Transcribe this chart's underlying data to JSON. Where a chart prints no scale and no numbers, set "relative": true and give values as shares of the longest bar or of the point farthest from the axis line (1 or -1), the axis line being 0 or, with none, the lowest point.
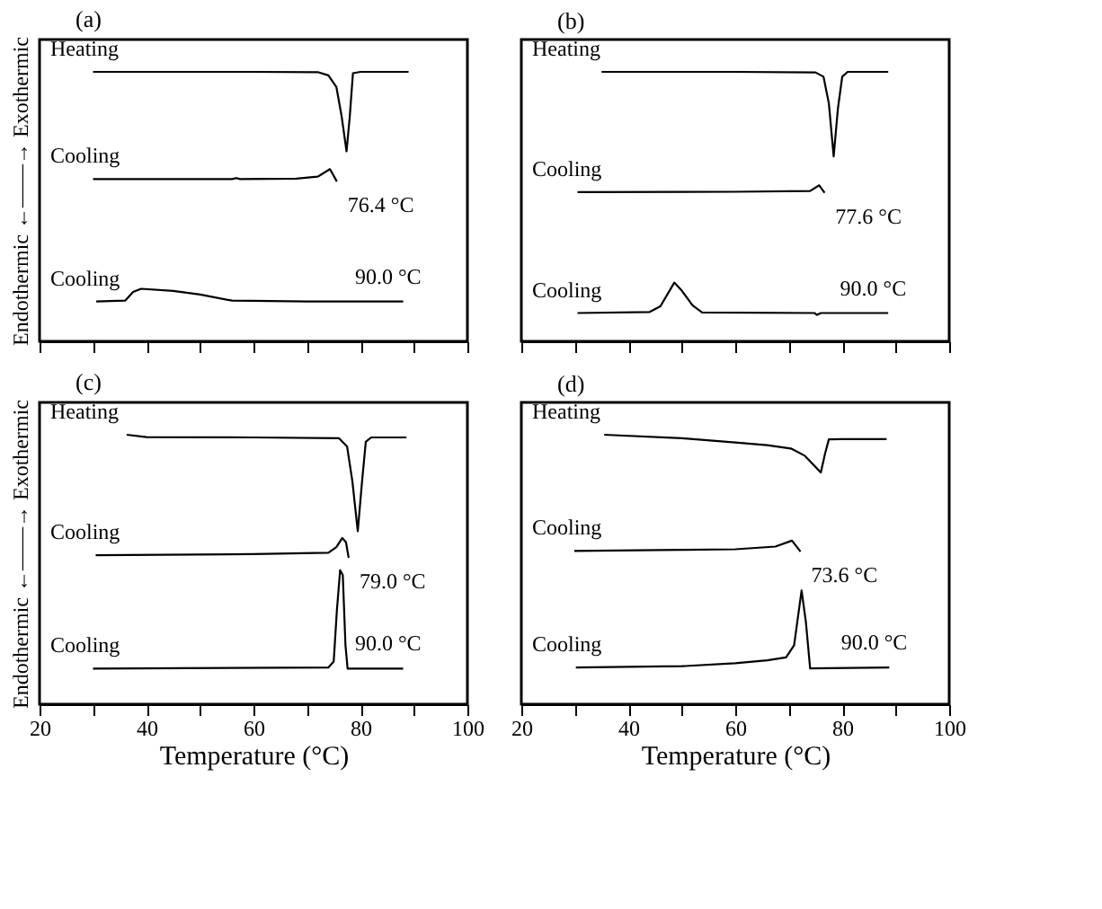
{
  "chart_data": [
    {
      "type": "line",
      "title": "(a)",
      "ylabel": "Endothermic ←——→ Exothermic",
      "relative": true,
      "xlim": [
        20,
        100
      ],
      "xticks": [
        {
          "value": 20,
          "label": null
        },
        {
          "value": 30,
          "label": null
        },
        {
          "value": 40,
          "label": null
        },
        {
          "value": 50,
          "label": null
        },
        {
          "value": 60,
          "label": null
        },
        {
          "value": 70,
          "label": null
        },
        {
          "value": 80,
          "label": null
        },
        {
          "value": 90,
          "label": null
        },
        {
          "value": 100,
          "label": null
        }
      ],
      "tick_labels": false,
      "grid": false,
      "marker": "none",
      "line_style": "solid",
      "series": [
        {
          "name": "Heating",
          "color": "#000000",
          "x": [
            30,
            60,
            72,
            74,
            75.5,
            76.5,
            77.4,
            78,
            78.6,
            80,
            89
          ],
          "values": [
            1.0,
            1.0,
            0.999,
            0.987,
            0.944,
            0.833,
            0.705,
            0.833,
            0.995,
            1.0,
            1.0
          ]
        },
        {
          "name": "Cooling",
          "color": "#000000",
          "x": [
            30,
            50,
            56,
            56.8,
            57.5,
            68,
            72,
            74.3,
            75.6
          ],
          "values": [
            0.602,
            0.602,
            0.602,
            0.606,
            0.602,
            0.604,
            0.611,
            0.639,
            0.593
          ]
        },
        {
          "name": "Cooling",
          "color": "#000000",
          "x": [
            30.6,
            36,
            37.5,
            39,
            45,
            50,
            56,
            70,
            88
          ],
          "values": [
            0.148,
            0.151,
            0.183,
            0.195,
            0.187,
            0.174,
            0.151,
            0.148,
            0.148
          ]
        }
      ],
      "annotations": [
        "76.4 °C",
        "90.0 °C"
      ]
    },
    {
      "type": "line",
      "title": "(b)",
      "relative": true,
      "xlim": [
        20,
        100
      ],
      "xticks": [
        {
          "value": 20,
          "label": null
        },
        {
          "value": 30,
          "label": null
        },
        {
          "value": 40,
          "label": null
        },
        {
          "value": 50,
          "label": null
        },
        {
          "value": 60,
          "label": null
        },
        {
          "value": 70,
          "label": null
        },
        {
          "value": 80,
          "label": null
        },
        {
          "value": 90,
          "label": null
        },
        {
          "value": 100,
          "label": null
        }
      ],
      "tick_labels": false,
      "grid": false,
      "marker": "none",
      "line_style": "solid",
      "series": [
        {
          "name": "Heating",
          "color": "#000000",
          "x": [
            35,
            60,
            75,
            76.5,
            77.5,
            78.4,
            79.2,
            80,
            81,
            88.6
          ],
          "values": [
            1.0,
            1.0,
            0.998,
            0.982,
            0.883,
            0.686,
            0.865,
            0.982,
            1.0,
            1.0
          ]
        },
        {
          "name": "Cooling",
          "color": "#000000",
          "x": [
            30.5,
            60,
            74,
            75.7,
            76.7
          ],
          "values": [
            0.554,
            0.555,
            0.558,
            0.579,
            0.551
          ]
        },
        {
          "name": "Cooling",
          "color": "#000000",
          "x": [
            30.5,
            44,
            46,
            48.6,
            50,
            52,
            53.8,
            74.8,
            75.3,
            76,
            88.6
          ],
          "values": [
            0.105,
            0.109,
            0.13,
            0.218,
            0.188,
            0.134,
            0.107,
            0.105,
            0.098,
            0.105,
            0.105
          ]
        }
      ],
      "annotations": [
        "77.6 °C",
        "90.0 °C"
      ]
    },
    {
      "type": "line",
      "title": "(c)",
      "ylabel": "Endothermic ←——→ Exothermic",
      "xlabel": "Temperature (°C)",
      "relative": true,
      "xlim": [
        20,
        100
      ],
      "xticks": [
        20,
        {
          "value": 30,
          "label": null
        },
        40,
        {
          "value": 50,
          "label": null
        },
        60,
        {
          "value": 70,
          "label": null
        },
        80,
        {
          "value": 90,
          "label": null
        },
        100
      ],
      "tick_labels": "x",
      "grid": false,
      "marker": "none",
      "line_style": "solid",
      "series": [
        {
          "name": "Heating",
          "color": "#000000",
          "x": [
            36.3,
            40,
            60,
            76,
            77.5,
            78.5,
            79.5,
            80.3,
            81,
            82,
            88.6
          ],
          "values": [
            1.0,
            0.991,
            0.99,
            0.987,
            0.957,
            0.826,
            0.642,
            0.826,
            0.974,
            0.99,
            0.99
          ]
        },
        {
          "name": "Cooling",
          "color": "#000000",
          "x": [
            30.5,
            60,
            74,
            75.5,
            76.6,
            77.3,
            77.8
          ],
          "values": [
            0.553,
            0.557,
            0.562,
            0.583,
            0.617,
            0.601,
            0.543
          ]
        },
        {
          "name": "Cooling",
          "color": "#000000",
          "x": [
            30,
            74,
            75,
            75.6,
            76.2,
            76.7,
            77.2,
            77.6,
            88
          ],
          "values": [
            0.132,
            0.136,
            0.158,
            0.349,
            0.497,
            0.479,
            0.219,
            0.132,
            0.132
          ]
        }
      ],
      "annotations": [
        "79.0 °C",
        "90.0 °C"
      ]
    },
    {
      "type": "line",
      "title": "(d)",
      "xlabel": "Temperature (°C)",
      "relative": true,
      "xlim": [
        20,
        100
      ],
      "xticks": [
        20,
        {
          "value": 30,
          "label": null
        },
        40,
        {
          "value": 50,
          "label": null
        },
        60,
        {
          "value": 70,
          "label": null
        },
        80,
        {
          "value": 90,
          "label": null
        },
        100
      ],
      "tick_labels": "x",
      "grid": false,
      "marker": "none",
      "line_style": "solid",
      "series": [
        {
          "name": "Heating",
          "color": "#000000",
          "x": [
            35.5,
            50,
            60,
            66,
            70.4,
            73,
            76,
            76.8,
            77.5,
            80,
            88.3
          ],
          "values": [
            1.0,
            0.987,
            0.971,
            0.961,
            0.949,
            0.922,
            0.86,
            0.931,
            0.983,
            0.984,
            0.984
          ]
        },
        {
          "name": "Cooling",
          "color": "#000000",
          "x": [
            29.9,
            50,
            60,
            67.5,
            70.6,
            72.2
          ],
          "values": [
            0.569,
            0.573,
            0.575,
            0.585,
            0.607,
            0.566
          ]
        },
        {
          "name": "Cooling",
          "color": "#000000",
          "x": [
            30.2,
            50,
            60,
            66,
            69.5,
            71,
            72.4,
            73.2,
            74,
            88.8
          ],
          "values": [
            0.136,
            0.141,
            0.152,
            0.163,
            0.174,
            0.219,
            0.422,
            0.306,
            0.133,
            0.136
          ]
        }
      ],
      "annotations": [
        "73.6 °C",
        "90.0 °C"
      ]
    }
  ]
}
